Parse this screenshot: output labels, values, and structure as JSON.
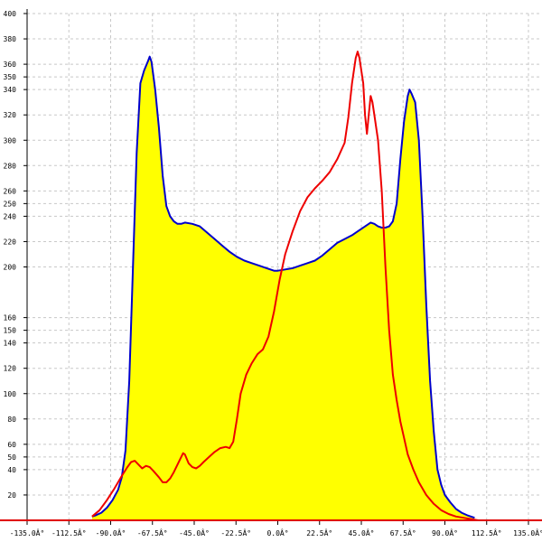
{
  "chart_data": {
    "type": "area",
    "title": "",
    "xlabel": "",
    "ylabel": "",
    "xlim": [
      -135,
      135
    ],
    "ylim": [
      0,
      400
    ],
    "grid": true,
    "x_ticks": [
      -135,
      -112.5,
      -90,
      -67.5,
      -45,
      -22.5,
      0,
      22.5,
      45,
      67.5,
      90,
      112.5,
      135
    ],
    "x_tick_labels": [
      "-135.0Â°",
      "-112.5Â°",
      "-90.0Â°",
      "-67.5Â°",
      "-45.0Â°",
      "-22.5Â°",
      "0.0Â°",
      "22.5Â°",
      "45.0Â°",
      "67.5Â°",
      "90.0Â°",
      "112.5Â°",
      "135.0Â°"
    ],
    "y_ticks": [
      20,
      40,
      50,
      60,
      80,
      100,
      120,
      140,
      150,
      160,
      200,
      220,
      240,
      250,
      260,
      280,
      300,
      320,
      340,
      350,
      360,
      380,
      400
    ],
    "y_tick_labels": [
      "20",
      "40",
      "50",
      "60",
      "80",
      "100",
      "120",
      "140",
      "150",
      "160",
      "200",
      "220",
      "240",
      "250",
      "260",
      "280",
      "300",
      "320",
      "340",
      "350",
      "360",
      "380",
      "400"
    ],
    "series": [
      {
        "color": "#0000cc",
        "fill": "#ffff00",
        "points": [
          [
            -100,
            3
          ],
          [
            -98,
            4
          ],
          [
            -95,
            6
          ],
          [
            -92,
            10
          ],
          [
            -89,
            16
          ],
          [
            -86,
            24
          ],
          [
            -84,
            34
          ],
          [
            -82,
            55
          ],
          [
            -80,
            110
          ],
          [
            -78,
            200
          ],
          [
            -76,
            290
          ],
          [
            -74,
            345
          ],
          [
            -72,
            355
          ],
          [
            -70,
            362
          ],
          [
            -69,
            366
          ],
          [
            -68,
            362
          ],
          [
            -66,
            340
          ],
          [
            -64,
            310
          ],
          [
            -62,
            272
          ],
          [
            -60,
            248
          ],
          [
            -58,
            240
          ],
          [
            -56,
            236
          ],
          [
            -54,
            234
          ],
          [
            -52,
            234
          ],
          [
            -50,
            235
          ],
          [
            -46,
            234
          ],
          [
            -42,
            232
          ],
          [
            -38,
            227
          ],
          [
            -34,
            222
          ],
          [
            -30,
            217
          ],
          [
            -26,
            212
          ],
          [
            -22,
            208
          ],
          [
            -18,
            205
          ],
          [
            -14,
            203
          ],
          [
            -10,
            201
          ],
          [
            -6,
            199
          ],
          [
            -2,
            197
          ],
          [
            0,
            197
          ],
          [
            4,
            198
          ],
          [
            8,
            199
          ],
          [
            12,
            201
          ],
          [
            16,
            203
          ],
          [
            20,
            205
          ],
          [
            24,
            209
          ],
          [
            28,
            214
          ],
          [
            32,
            219
          ],
          [
            36,
            222
          ],
          [
            40,
            225
          ],
          [
            44,
            229
          ],
          [
            48,
            233
          ],
          [
            50,
            235
          ],
          [
            52,
            234
          ],
          [
            54,
            232
          ],
          [
            56,
            231
          ],
          [
            58,
            231
          ],
          [
            60,
            232
          ],
          [
            62,
            236
          ],
          [
            64,
            250
          ],
          [
            66,
            285
          ],
          [
            68,
            315
          ],
          [
            70,
            335
          ],
          [
            71,
            340
          ],
          [
            72,
            337
          ],
          [
            74,
            330
          ],
          [
            76,
            300
          ],
          [
            78,
            240
          ],
          [
            80,
            170
          ],
          [
            82,
            110
          ],
          [
            84,
            70
          ],
          [
            86,
            40
          ],
          [
            88,
            28
          ],
          [
            90,
            20
          ],
          [
            93,
            14
          ],
          [
            96,
            9
          ],
          [
            99,
            6
          ],
          [
            102,
            4
          ],
          [
            104,
            3
          ],
          [
            106,
            2
          ]
        ]
      },
      {
        "color": "#ee0000",
        "fill": "none",
        "points": [
          [
            -100,
            3
          ],
          [
            -96,
            8
          ],
          [
            -92,
            16
          ],
          [
            -88,
            25
          ],
          [
            -84,
            35
          ],
          [
            -81,
            42
          ],
          [
            -79,
            46
          ],
          [
            -77,
            47
          ],
          [
            -75,
            44
          ],
          [
            -73,
            41
          ],
          [
            -71,
            43
          ],
          [
            -69,
            42
          ],
          [
            -67,
            39
          ],
          [
            -64,
            34
          ],
          [
            -62,
            30
          ],
          [
            -60,
            30
          ],
          [
            -58,
            33
          ],
          [
            -56,
            38
          ],
          [
            -54,
            44
          ],
          [
            -52,
            50
          ],
          [
            -51,
            53
          ],
          [
            -50,
            52
          ],
          [
            -48,
            45
          ],
          [
            -46,
            42
          ],
          [
            -44,
            41
          ],
          [
            -42,
            43
          ],
          [
            -40,
            46
          ],
          [
            -37,
            50
          ],
          [
            -34,
            54
          ],
          [
            -31,
            57
          ],
          [
            -28,
            58
          ],
          [
            -26,
            57
          ],
          [
            -24,
            62
          ],
          [
            -22,
            80
          ],
          [
            -20,
            100
          ],
          [
            -17,
            115
          ],
          [
            -14,
            124
          ],
          [
            -11,
            131
          ],
          [
            -8,
            135
          ],
          [
            -5,
            145
          ],
          [
            -2,
            165
          ],
          [
            1,
            190
          ],
          [
            4,
            210
          ],
          [
            8,
            228
          ],
          [
            12,
            244
          ],
          [
            16,
            255
          ],
          [
            20,
            262
          ],
          [
            24,
            268
          ],
          [
            28,
            275
          ],
          [
            32,
            285
          ],
          [
            36,
            298
          ],
          [
            38,
            318
          ],
          [
            40,
            345
          ],
          [
            42,
            365
          ],
          [
            43,
            370
          ],
          [
            44,
            365
          ],
          [
            46,
            345
          ],
          [
            47,
            320
          ],
          [
            48,
            305
          ],
          [
            49,
            320
          ],
          [
            50,
            335
          ],
          [
            51,
            330
          ],
          [
            52,
            320
          ],
          [
            54,
            300
          ],
          [
            56,
            260
          ],
          [
            58,
            200
          ],
          [
            60,
            150
          ],
          [
            62,
            115
          ],
          [
            64,
            95
          ],
          [
            66,
            78
          ],
          [
            68,
            65
          ],
          [
            70,
            52
          ],
          [
            73,
            40
          ],
          [
            76,
            30
          ],
          [
            80,
            20
          ],
          [
            84,
            13
          ],
          [
            88,
            8
          ],
          [
            92,
            5
          ],
          [
            96,
            3
          ],
          [
            100,
            2
          ],
          [
            104,
            1
          ],
          [
            108,
            0
          ]
        ]
      }
    ]
  }
}
